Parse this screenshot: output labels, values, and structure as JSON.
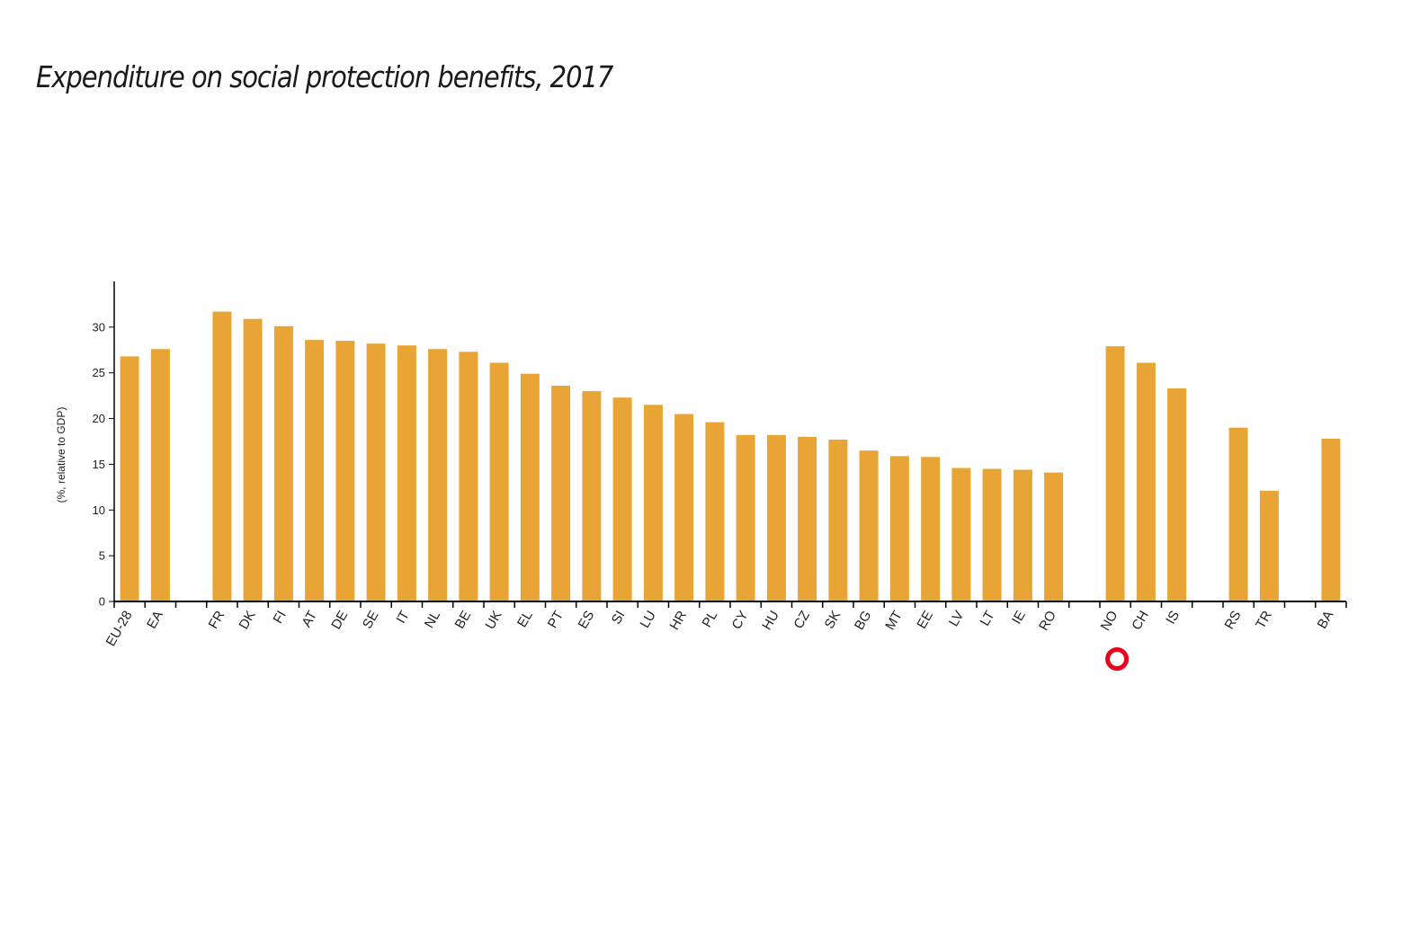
{
  "chart_data": {
    "type": "bar",
    "title": "Expenditure on social protection benefits, 2017",
    "xlabel": "",
    "ylabel": "(%, relative to GDP)",
    "ylim": [
      0,
      35
    ],
    "yticks": [
      0,
      5,
      10,
      15,
      20,
      25,
      30
    ],
    "grid": false,
    "legend": "none",
    "bar_color": "#E8A535",
    "categories": [
      "EU-28",
      "EA",
      "",
      "FR",
      "DK",
      "FI",
      "AT",
      "DE",
      "SE",
      "IT",
      "NL",
      "BE",
      "UK",
      "EL",
      "PT",
      "ES",
      "SI",
      "LU",
      "HR",
      "PL",
      "CY",
      "HU",
      "CZ",
      "SK",
      "BG",
      "MT",
      "EE",
      "LV",
      "LT",
      "IE",
      "RO",
      "",
      "NO",
      "CH",
      "IS",
      "",
      "RS",
      "TR",
      "",
      "BA"
    ],
    "values": [
      26.8,
      27.6,
      null,
      31.7,
      30.9,
      30.1,
      28.6,
      28.5,
      28.2,
      28.0,
      27.6,
      27.3,
      26.1,
      24.9,
      23.6,
      23.0,
      22.3,
      21.5,
      20.5,
      19.6,
      18.2,
      18.2,
      18.0,
      17.7,
      16.5,
      15.9,
      15.8,
      14.6,
      14.5,
      14.4,
      14.1,
      null,
      27.9,
      26.1,
      23.3,
      null,
      19.0,
      12.1,
      null,
      17.8
    ]
  },
  "marker": {
    "color": "#E8001C",
    "near_category": "NO"
  }
}
